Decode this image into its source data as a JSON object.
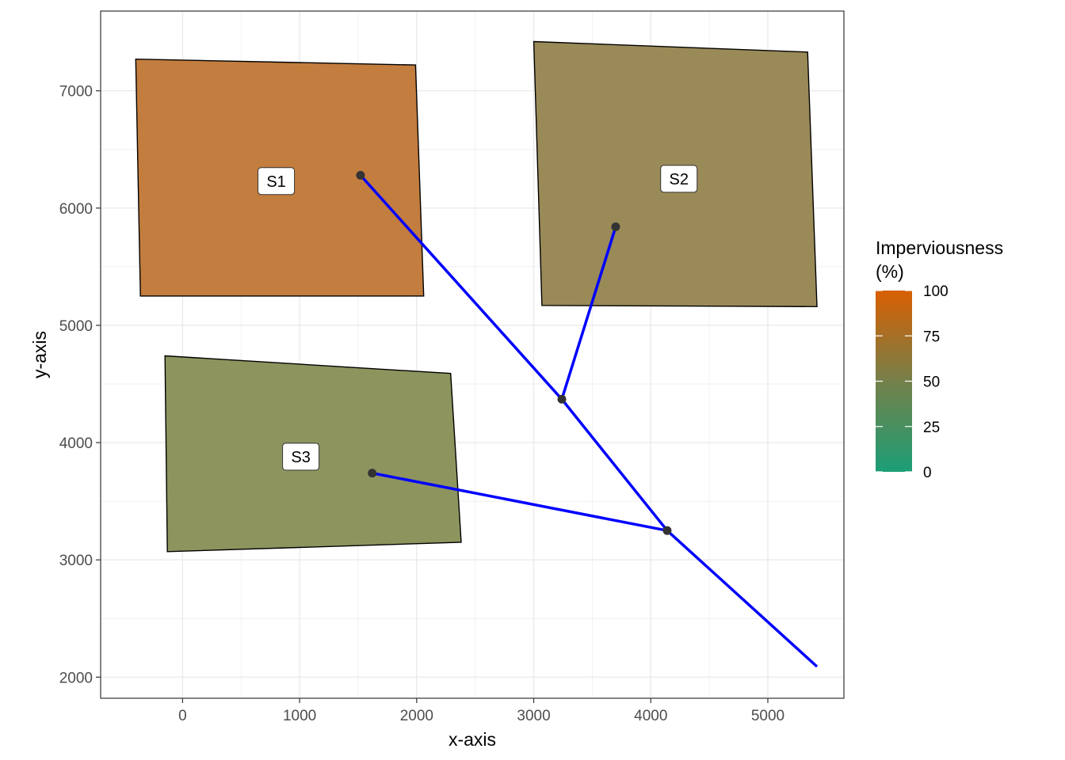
{
  "chart_data": {
    "type": "polygon-network",
    "xlabel": "x-axis",
    "ylabel": "y-axis",
    "xlim": [
      -700,
      5650
    ],
    "ylim": [
      1820,
      7680
    ],
    "x_ticks": [
      0,
      1000,
      2000,
      3000,
      4000,
      5000
    ],
    "y_ticks": [
      2000,
      3000,
      4000,
      5000,
      6000,
      7000
    ],
    "grid": true,
    "legend": {
      "title": "Imperviousness (%)",
      "title_lines": [
        "Imperviousness",
        "(%)"
      ],
      "position": "right",
      "type": "colorbar",
      "range": [
        0,
        100
      ],
      "ticks": [
        0,
        25,
        50,
        75,
        100
      ],
      "colors": {
        "low": "#1b9e77",
        "mid": "#75804a",
        "high": "#d95f02"
      }
    },
    "subcatchments": [
      {
        "name": "S1",
        "imperviousness": 80,
        "fill": "#c27d3f",
        "vertices": [
          [
            -400,
            7270
          ],
          [
            1990,
            7220
          ],
          [
            2060,
            5250
          ],
          [
            -360,
            5250
          ]
        ],
        "label_pos": [
          800,
          6230
        ]
      },
      {
        "name": "S2",
        "imperviousness": 55,
        "fill": "#9a8a58",
        "vertices": [
          [
            3000,
            7420
          ],
          [
            5340,
            7330
          ],
          [
            5420,
            5160
          ],
          [
            3070,
            5170
          ]
        ],
        "label_pos": [
          4240,
          6250
        ]
      },
      {
        "name": "S3",
        "imperviousness": 45,
        "fill": "#8e945e",
        "vertices": [
          [
            -150,
            4740
          ],
          [
            2290,
            4590
          ],
          [
            2380,
            3150
          ],
          [
            -130,
            3070
          ]
        ],
        "label_pos": [
          1010,
          3880
        ]
      }
    ],
    "nodes": [
      {
        "id": "n1",
        "x": 1520,
        "y": 6280
      },
      {
        "id": "n2",
        "x": 3700,
        "y": 5840
      },
      {
        "id": "n3",
        "x": 1620,
        "y": 3740
      },
      {
        "id": "n4",
        "x": 3240,
        "y": 4370
      },
      {
        "id": "n5",
        "x": 4140,
        "y": 3250
      }
    ],
    "links": [
      {
        "from": [
          1520,
          6280
        ],
        "to": [
          3240,
          4370
        ]
      },
      {
        "from": [
          3700,
          5840
        ],
        "to": [
          3240,
          4370
        ]
      },
      {
        "from": [
          3240,
          4370
        ],
        "to": [
          4140,
          3250
        ]
      },
      {
        "from": [
          1620,
          3740
        ],
        "to": [
          4140,
          3250
        ]
      },
      {
        "from": [
          4140,
          3250
        ],
        "to": [
          5420,
          2090
        ]
      }
    ],
    "link_color": "#0000ff",
    "node_color": "#333333",
    "panel_border_color": "#333333",
    "grid_color": "#ebebeb"
  }
}
